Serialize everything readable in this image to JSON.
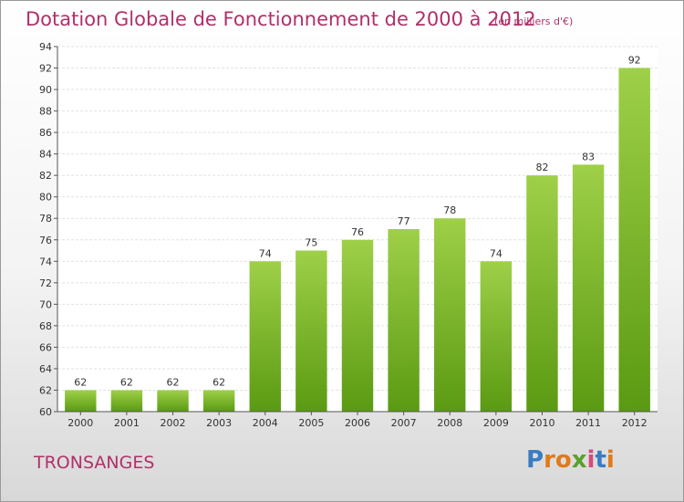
{
  "header": {
    "title": "Dotation Globale de Fonctionnement de 2000 à 2012",
    "unit": "(en milliers d'€)"
  },
  "footer": {
    "commune": "TRONSANGES",
    "logo_text": "Proxiti"
  },
  "colors": {
    "title": "#b0306a",
    "bar_top": "#9ed048",
    "bar_bottom": "#5a9a12",
    "logo_letters": [
      "#3a7cc2",
      "#e07a1a",
      "#e07a1a",
      "#5aa02c",
      "#d64a7a",
      "#3a7cc2",
      "#e07a1a"
    ]
  },
  "chart_data": {
    "type": "bar",
    "categories": [
      "2000",
      "2001",
      "2002",
      "2003",
      "2004",
      "2005",
      "2006",
      "2007",
      "2008",
      "2009",
      "2010",
      "2011",
      "2012"
    ],
    "values": [
      62,
      62,
      62,
      62,
      74,
      75,
      76,
      77,
      78,
      74,
      82,
      83,
      92
    ],
    "title": "Dotation Globale de Fonctionnement de 2000 à 2012",
    "ylabel": "",
    "xlabel": "",
    "ylim": [
      60,
      94
    ],
    "yticks": [
      60,
      62,
      64,
      66,
      68,
      70,
      72,
      74,
      76,
      78,
      80,
      82,
      84,
      86,
      88,
      90,
      92,
      94
    ],
    "grid": true,
    "data_labels": true
  }
}
